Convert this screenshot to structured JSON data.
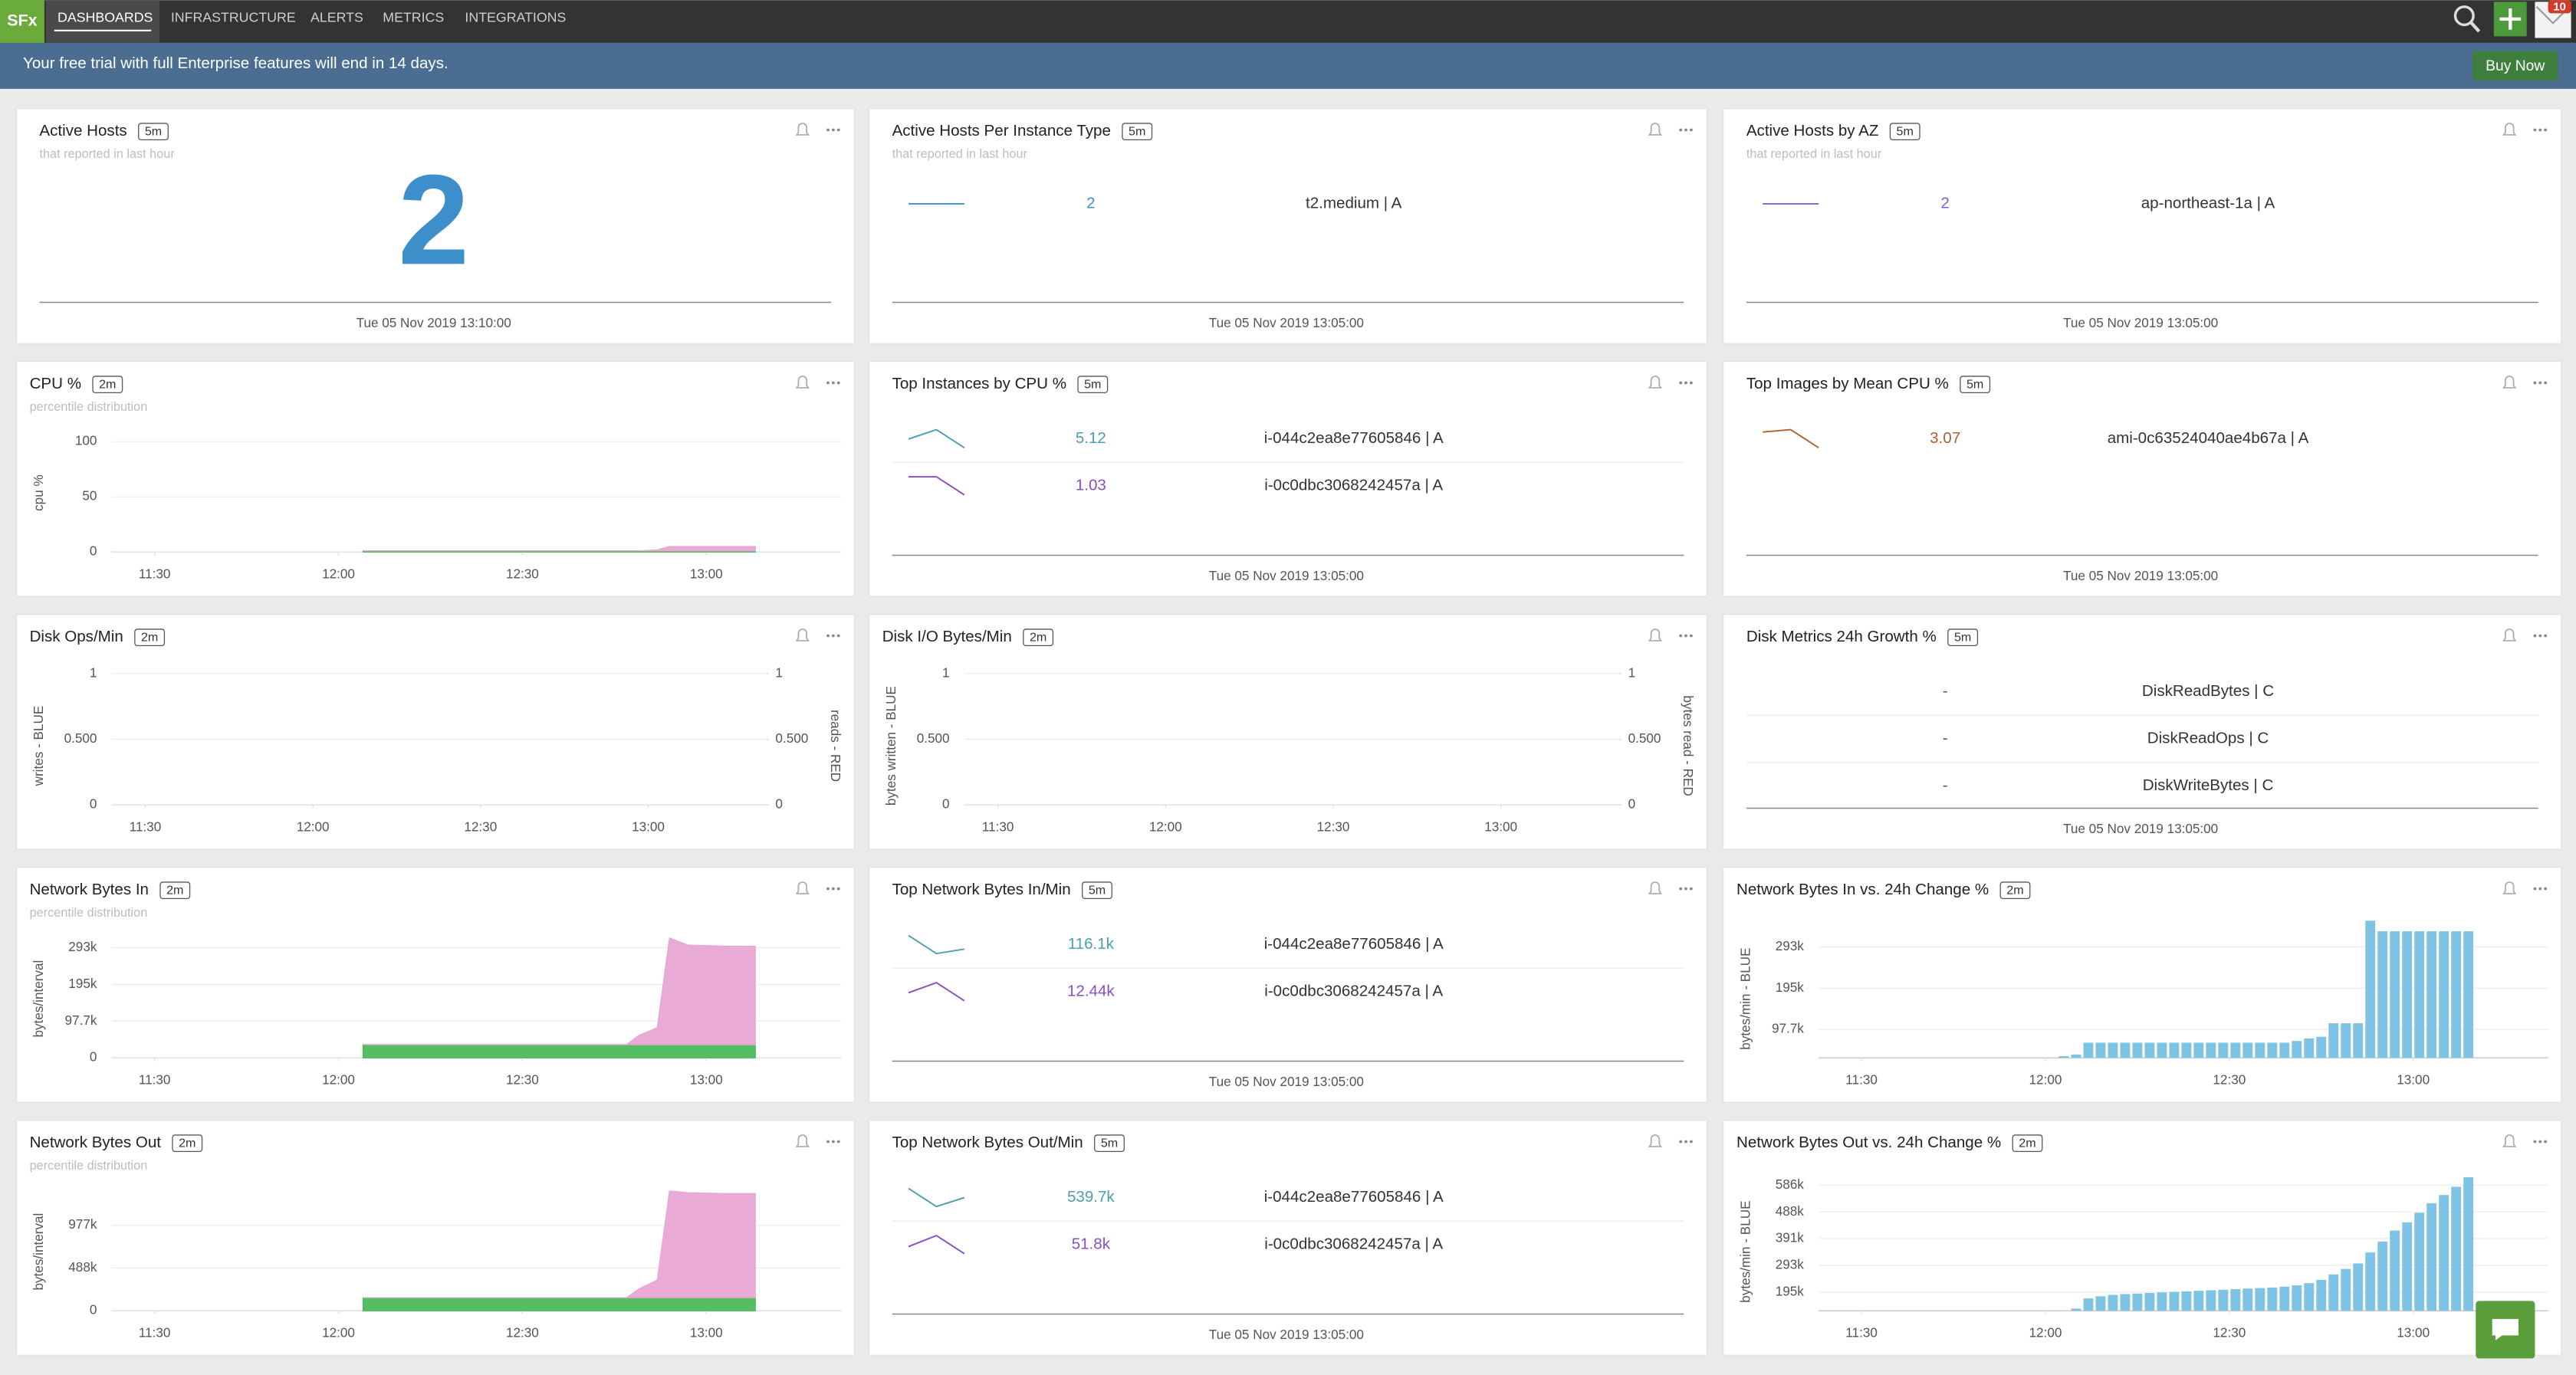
{
  "nav": {
    "logo": "SFx",
    "tabs": [
      "DASHBOARDS",
      "INFRASTRUCTURE",
      "ALERTS",
      "METRICS",
      "INTEGRATIONS"
    ],
    "badge": "10"
  },
  "banner": {
    "text": "Your free trial with full Enterprise features will end in 14 days.",
    "button": "Buy Now"
  },
  "panels": [
    {
      "title": "Active Hosts",
      "resolution": "5m",
      "subtitle": "that reported in last hour",
      "value": 2,
      "color": "#3d8fcb",
      "timestamp": "Tue 05 Nov 2019 13:10:00"
    },
    {
      "title": "Active Hosts Per Instance Type",
      "resolution": "5m",
      "subtitle": "that reported in last hour",
      "rows": [
        {
          "value": 2,
          "label": "t2.medium | A",
          "color": "#3d8fcb",
          "spark": [
            2,
            2
          ]
        }
      ],
      "timestamp": "Tue 05 Nov 2019 13:05:00"
    },
    {
      "title": "Active Hosts by AZ",
      "resolution": "5m",
      "subtitle": "that reported in last hour",
      "rows": [
        {
          "value": 2,
          "label": "ap-northeast-1a | A",
          "color": "#7467d1",
          "spark": [
            2,
            2
          ]
        }
      ],
      "timestamp": "Tue 05 Nov 2019 13:05:00"
    },
    {
      "title": "CPU %",
      "resolution": "2m",
      "subtitle": "percentile distribution",
      "chart": {
        "type": "area",
        "y_label": "cpu %",
        "xlim": [
          683,
          802
        ],
        "xticks": [
          {
            "value": 690,
            "label": "11:30"
          },
          {
            "value": 720,
            "label": "12:00"
          },
          {
            "value": 750,
            "label": "12:30"
          },
          {
            "value": 780,
            "label": "13:00"
          }
        ],
        "ylim": [
          0,
          125
        ],
        "yticks": [
          0,
          50,
          100
        ],
        "x": [
          724,
          767,
          769,
          772,
          774,
          777,
          783,
          788
        ],
        "series": [
          {
            "color": "#4cbb5a",
            "values": [
              1,
              1,
              1,
              1,
              1,
              1,
              1,
              1
            ]
          },
          {
            "color": "#e8a5d4",
            "values": [
              0,
              0,
              0,
              1,
              4,
              4,
              4,
              4
            ]
          }
        ]
      }
    },
    {
      "title": "Top Instances by CPU %",
      "resolution": "5m",
      "rows": [
        {
          "value": 5.12,
          "label": "i-044c2ea8e77605846 | A",
          "color": "#4b9fae",
          "spark": [
            5.35,
            5.6,
            5.12
          ]
        },
        {
          "value": 1.03,
          "label": "i-0c0dbc3068242457a | A",
          "color": "#8b4fc0",
          "spark": [
            1.4,
            1.4,
            1.03
          ]
        }
      ],
      "timestamp": "Tue 05 Nov 2019 13:05:00"
    },
    {
      "title": "Top Images by Mean CPU %",
      "resolution": "5m",
      "rows": [
        {
          "value": 3.07,
          "label": "ami-0c63524040ae4b67a | A",
          "color": "#b0602a",
          "spark": [
            3.4,
            3.45,
            3.07
          ]
        }
      ],
      "timestamp": "Tue 05 Nov 2019 13:05:00"
    },
    {
      "title": "Disk Ops/Min",
      "resolution": "2m",
      "chart": {
        "type": "line",
        "y_label": "writes - BLUE",
        "y2_label": "reads - RED",
        "xlim": [
          684,
          801
        ],
        "xticks": [
          {
            "value": 690,
            "label": "11:30"
          },
          {
            "value": 720,
            "label": "12:00"
          },
          {
            "value": 750,
            "label": "12:30"
          },
          {
            "value": 780,
            "label": "13:00"
          }
        ],
        "ylim": [
          0,
          1.05
        ],
        "yticks": [
          0,
          {
            "value": 0.5,
            "label": "0.500"
          },
          1
        ],
        "y2lim": [
          0,
          1.05
        ],
        "y2ticks": [
          0,
          {
            "value": 0.5,
            "label": "0.500"
          },
          1
        ],
        "series": []
      }
    },
    {
      "title": "Disk I/O Bytes/Min",
      "resolution": "2m",
      "chart": {
        "type": "line",
        "y_label": "bytes written - BLUE",
        "y2_label": "bytes read - RED",
        "xlim": [
          684,
          801
        ],
        "xticks": [
          {
            "value": 690,
            "label": "11:30"
          },
          {
            "value": 720,
            "label": "12:00"
          },
          {
            "value": 750,
            "label": "12:30"
          },
          {
            "value": 780,
            "label": "13:00"
          }
        ],
        "ylim": [
          0,
          1.05
        ],
        "yticks": [
          0,
          {
            "value": 0.5,
            "label": "0.500"
          },
          1
        ],
        "y2lim": [
          0,
          1.05
        ],
        "y2ticks": [
          0,
          {
            "value": 0.5,
            "label": "0.500"
          },
          1
        ],
        "series": []
      }
    },
    {
      "title": "Disk Metrics 24h Growth %",
      "resolution": "5m",
      "rows": [
        {
          "value": "-",
          "label": "DiskReadBytes | C",
          "color": "#555555"
        },
        {
          "value": "-",
          "label": "DiskReadOps | C",
          "color": "#555555"
        },
        {
          "value": "-",
          "label": "DiskWriteBytes | C",
          "color": "#555555"
        }
      ],
      "timestamp": "Tue 05 Nov 2019 13:05:00"
    },
    {
      "title": "Network Bytes In",
      "resolution": "2m",
      "subtitle": "percentile distribution",
      "chart": {
        "type": "area",
        "y_label": "bytes/interval",
        "xlim": [
          683,
          802
        ],
        "xticks": [
          {
            "value": 690,
            "label": "11:30"
          },
          {
            "value": 720,
            "label": "12:00"
          },
          {
            "value": 750,
            "label": "12:30"
          },
          {
            "value": 780,
            "label": "13:00"
          }
        ],
        "ylim": [
          0,
          367000
        ],
        "yticks": [
          0,
          {
            "value": 97700,
            "label": "97.7k"
          },
          {
            "value": 195000,
            "label": "195k"
          },
          {
            "value": 293000,
            "label": "293k"
          }
        ],
        "x": [
          724,
          767,
          769,
          772,
          774,
          777,
          783,
          788
        ],
        "series": [
          {
            "color": "#4cbb5a",
            "values": [
              35000,
              35000,
              35000,
              35000,
              35000,
              35000,
              35000,
              35000
            ]
          },
          {
            "color": "#e8a5d4",
            "values": [
              0,
              0,
              25000,
              45000,
              284000,
              265000,
              262000,
              262000
            ]
          }
        ]
      }
    },
    {
      "title": "Top Network Bytes In/Min",
      "resolution": "5m",
      "rows": [
        {
          "value": "116.1k",
          "label": "i-044c2ea8e77605846 | A",
          "color": "#4b9fae",
          "spark": [
            150000,
            105000,
            116100
          ]
        },
        {
          "value": "12.44k",
          "label": "i-0c0dbc3068242457a | A",
          "color": "#8b4fc0",
          "spark": [
            14000,
            16000,
            12440
          ]
        }
      ],
      "timestamp": "Tue 05 Nov 2019 13:05:00"
    },
    {
      "title": "Network Bytes In vs. 24h Change %",
      "resolution": "2m",
      "chart": {
        "type": "bar",
        "y_label": "bytes/min - BLUE",
        "color": "#7ec3e3",
        "xlim": [
          683,
          802
        ],
        "xticks": [
          {
            "value": 690,
            "label": "11:30"
          },
          {
            "value": 720,
            "label": "12:00"
          },
          {
            "value": 750,
            "label": "12:30"
          },
          {
            "value": 780,
            "label": "13:00"
          }
        ],
        "ylim": [
          30000,
          357000
        ],
        "yticks": [
          {
            "value": 97700,
            "label": "97.7k"
          },
          {
            "value": 195000,
            "label": "195k"
          },
          {
            "value": 293000,
            "label": "293k"
          }
        ],
        "x": [
          723,
          725,
          727,
          729,
          731,
          733,
          735,
          737,
          739,
          741,
          743,
          745,
          747,
          749,
          751,
          753,
          755,
          757,
          759,
          761,
          763,
          765,
          767,
          769,
          771,
          773,
          775,
          777,
          779,
          781,
          783,
          785,
          787,
          789
        ],
        "values": [
          34000,
          38000,
          66000,
          66000,
          66000,
          66000,
          66000,
          66000,
          66000,
          66000,
          66000,
          66000,
          66000,
          66000,
          66000,
          66000,
          66000,
          66000,
          66000,
          70000,
          76000,
          80000,
          112000,
          112000,
          112000,
          355000,
          330000,
          330000,
          330000,
          330000,
          330000,
          330000,
          330000,
          330000
        ]
      }
    },
    {
      "title": "Network Bytes Out",
      "resolution": "2m",
      "subtitle": "percentile distribution",
      "chart": {
        "type": "area",
        "y_label": "bytes/interval",
        "xlim": [
          683,
          802
        ],
        "xticks": [
          {
            "value": 690,
            "label": "11:30"
          },
          {
            "value": 720,
            "label": "12:00"
          },
          {
            "value": 750,
            "label": "12:30"
          },
          {
            "value": 780,
            "label": "13:00"
          }
        ],
        "ylim": [
          0,
          1577000
        ],
        "yticks": [
          0,
          {
            "value": 488000,
            "label": "488k"
          },
          {
            "value": 977000,
            "label": "977k"
          }
        ],
        "x": [
          724,
          767,
          769,
          772,
          774,
          777,
          783,
          788
        ],
        "series": [
          {
            "color": "#4cbb5a",
            "values": [
              150000,
              150000,
              150000,
              150000,
              150000,
              150000,
              150000,
              150000
            ]
          },
          {
            "color": "#e8a5d4",
            "values": [
              0,
              0,
              100000,
              200000,
              1220000,
              1200000,
              1190000,
              1190000
            ]
          }
        ]
      }
    },
    {
      "title": "Top Network Bytes Out/Min",
      "resolution": "5m",
      "rows": [
        {
          "value": "539.7k",
          "label": "i-044c2ea8e77605846 | A",
          "color": "#4b9fae",
          "spark": [
            560000,
            520000,
            539700
          ]
        },
        {
          "value": "51.8k",
          "label": "i-0c0dbc3068242457a | A",
          "color": "#8b4fc0",
          "spark": [
            55000,
            60000,
            51800
          ]
        }
      ],
      "timestamp": "Tue 05 Nov 2019 13:05:00"
    },
    {
      "title": "Network Bytes Out vs. 24h Change %",
      "resolution": "2m",
      "chart": {
        "type": "bar",
        "y_label": "bytes/min - BLUE",
        "color": "#7ec3e3",
        "xlim": [
          683,
          802
        ],
        "xticks": [
          {
            "value": 690,
            "label": "11:30"
          },
          {
            "value": 720,
            "label": "12:00"
          },
          {
            "value": 750,
            "label": "12:30"
          },
          {
            "value": 780,
            "label": "13:00"
          }
        ],
        "ylim": [
          127000,
          631000
        ],
        "yticks": [
          {
            "value": 195000,
            "label": "195k"
          },
          {
            "value": 293000,
            "label": "293k"
          },
          {
            "value": 391000,
            "label": "391k"
          },
          {
            "value": 488000,
            "label": "488k"
          },
          {
            "value": 586000,
            "label": "586k"
          }
        ],
        "x": [
          725,
          727,
          729,
          731,
          733,
          735,
          737,
          739,
          741,
          743,
          745,
          747,
          749,
          751,
          753,
          755,
          757,
          759,
          761,
          763,
          765,
          767,
          769,
          771,
          773,
          775,
          777,
          779,
          781,
          783,
          785,
          787,
          789
        ],
        "values": [
          135000,
          172000,
          180000,
          185000,
          188000,
          190000,
          192000,
          194000,
          196000,
          198000,
          200000,
          202000,
          204000,
          206000,
          208000,
          210000,
          212000,
          215000,
          220000,
          228000,
          240000,
          260000,
          280000,
          300000,
          340000,
          380000,
          420000,
          450000,
          485000,
          520000,
          550000,
          580000,
          615000
        ]
      }
    }
  ]
}
